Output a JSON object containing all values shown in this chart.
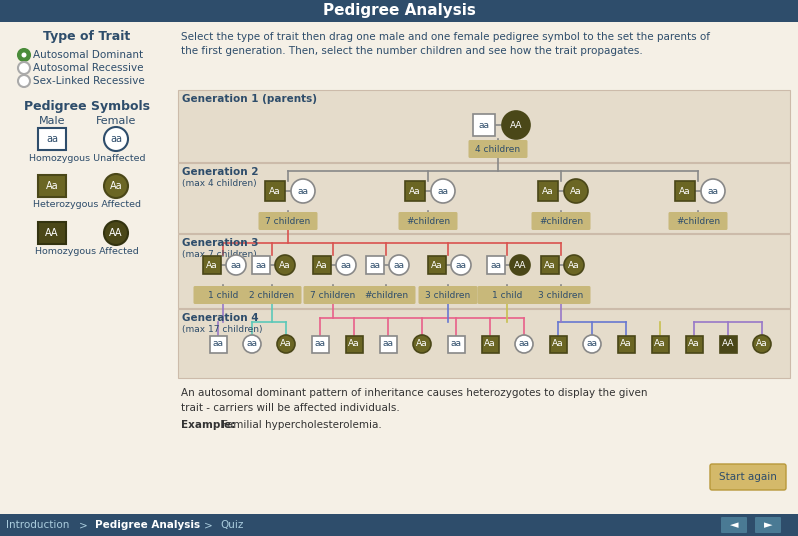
{
  "title": "Pedigree Analysis",
  "title_bg": "#2e4d6b",
  "title_color": "white",
  "body_bg": "#f5f0e6",
  "panel_bg": "#e5dccb",
  "dark_text": "#2e4d6b",
  "olive": "#6b6624",
  "olive_dark": "#4a4718",
  "white": "#ffffff",
  "bottom_bar_color": "#2e4d6b",
  "start_again_btn": "#d4b96a",
  "instruction": "Select the type of trait then drag one male and one female pedigree symbol to the set the parents of\nthe first generation. Then, select the number children and see how the trait propagates.",
  "footer": "An autosomal dominant pattern of inheritance causes heterozygotes to display the given\ntrait - carriers will be affected individuals.",
  "example": "Familial hypercholesterolemia.",
  "traits": [
    "Autosomal Dominant",
    "Autosomal Recessive",
    "Sex-Linked Recessive"
  ],
  "selected_green": "#4a8c3a",
  "gen1_label": "Generation 1 (parents)",
  "gen2_label": "Generation 2",
  "gen2_sub": "(max 4 children)",
  "gen3_label": "Generation 3",
  "gen3_sub": "(max 7 children)",
  "gen4_label": "Generation 4",
  "gen4_sub": "(max 17 children)",
  "child_label_bg": "#c8b87a",
  "red_line": "#d9534f",
  "cyan_line": "#5bc8b8",
  "pink_line": "#e8608a",
  "blue_line": "#6878d0",
  "yellow_line": "#c8c050",
  "purple_line": "#9878c8"
}
